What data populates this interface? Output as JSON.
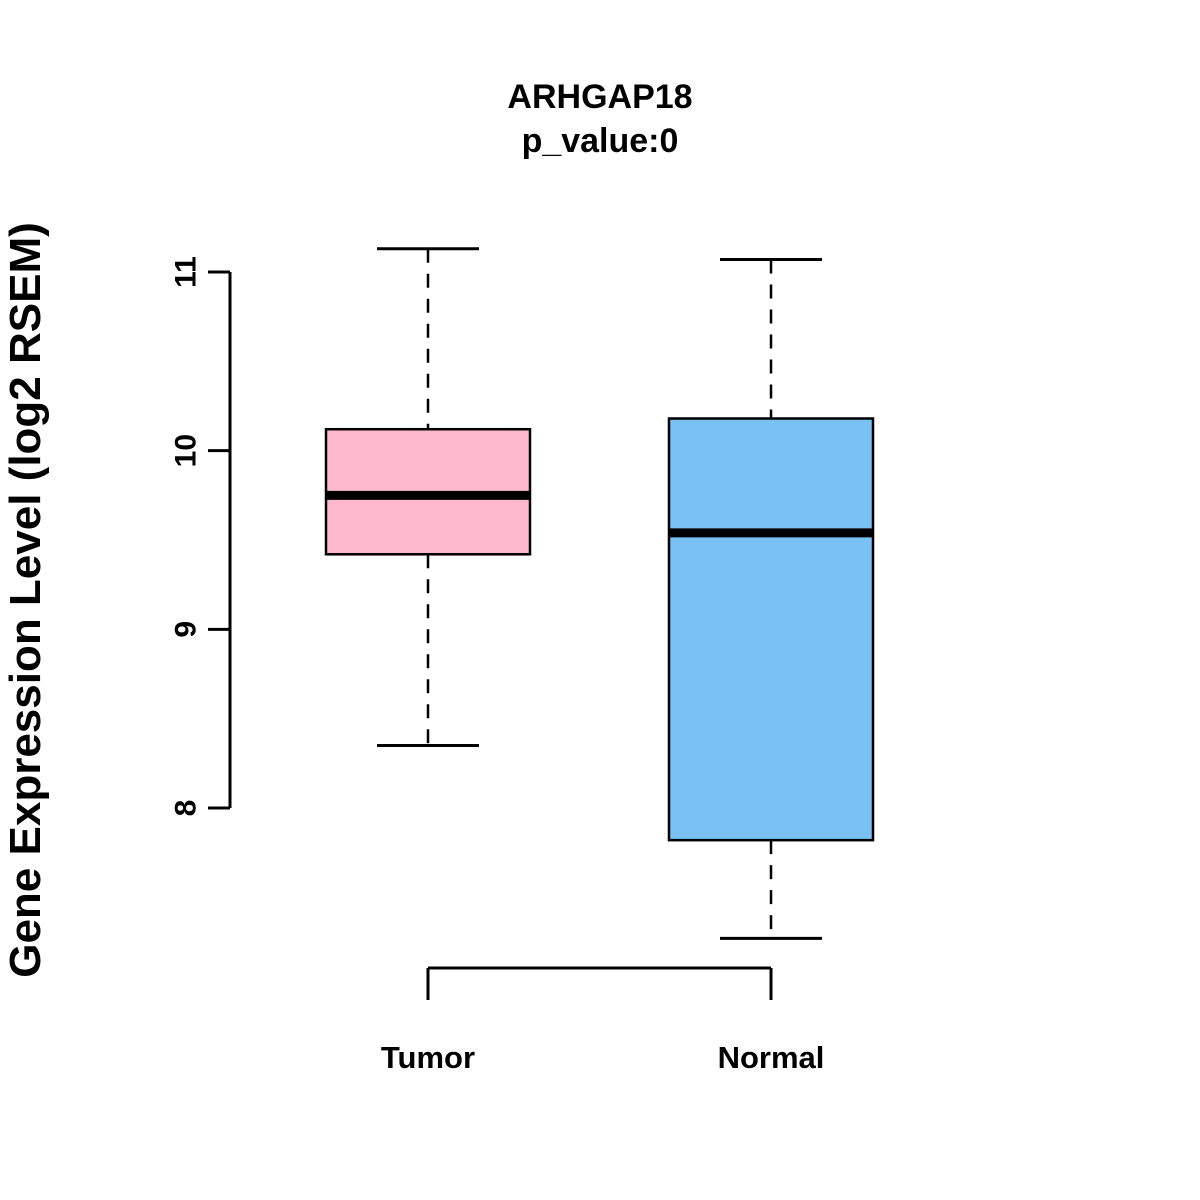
{
  "chart_data": {
    "type": "boxplot",
    "title": "ARHGAP18",
    "subtitle": "p_value:0",
    "ylabel": "Gene Expression Level (log2 RSEM)",
    "xlabel": "",
    "categories": [
      "Tumor",
      "Normal"
    ],
    "yticks": [
      "8",
      "9",
      "10",
      "11"
    ],
    "ylim": [
      7.1,
      11.3
    ],
    "grid": false,
    "legend_position": "none",
    "axis_color": "#000000",
    "series": [
      {
        "name": "Tumor",
        "box_color": "#ffb9cc",
        "border_color": "#000000",
        "whisker_low": 8.35,
        "q1": 9.42,
        "median": 9.75,
        "q3": 10.12,
        "whisker_high": 11.13
      },
      {
        "name": "Normal",
        "box_color": "#79c1f2",
        "border_color": "#000000",
        "whisker_low": 7.27,
        "q1": 7.82,
        "median": 9.54,
        "q3": 10.18,
        "whisker_high": 11.07
      }
    ]
  }
}
